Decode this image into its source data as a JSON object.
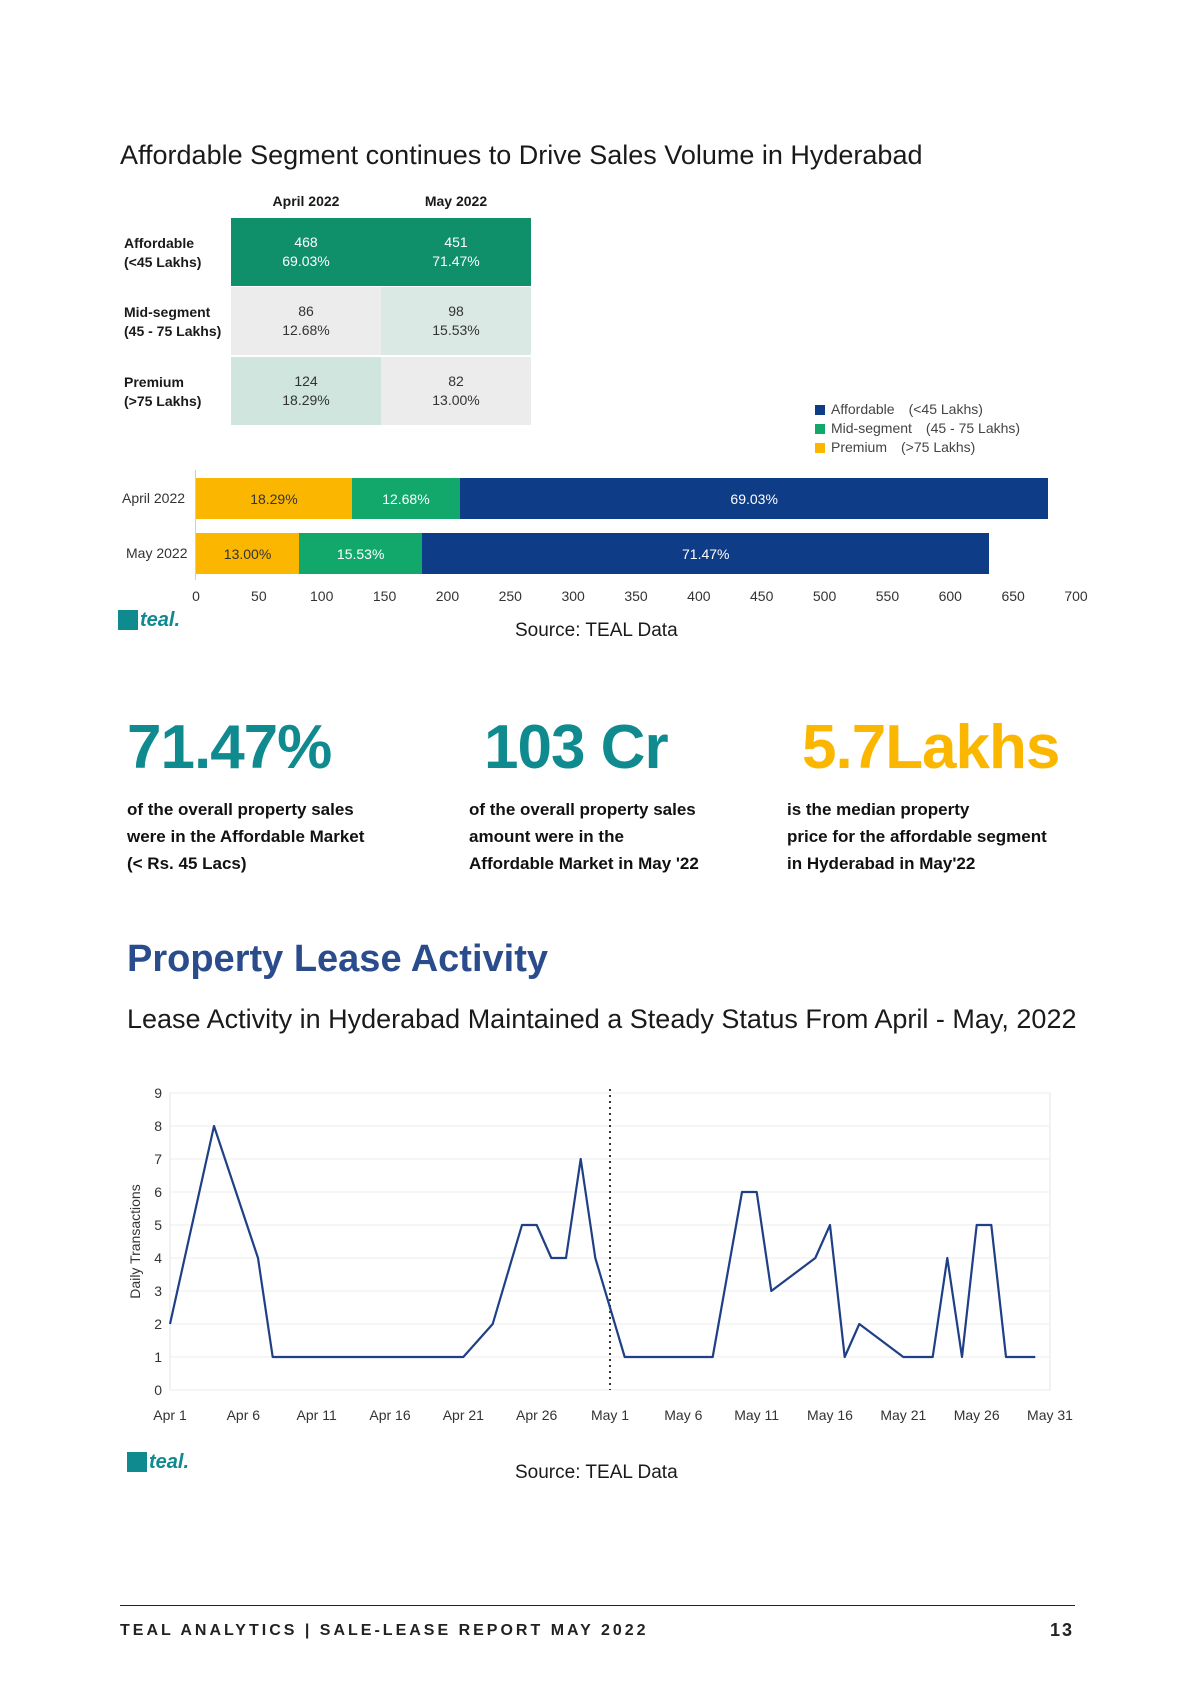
{
  "section_heading": "Affordable Segment continues to Drive Sales Volume in Hyderabad",
  "segment_table": {
    "columns": [
      "April 2022",
      "May 2022"
    ],
    "rows": [
      {
        "label_line1": "Affordable",
        "label_line2": "(<45 Lakhs)",
        "april_count": "468",
        "april_pct": "69.03%",
        "may_count": "451",
        "may_pct": "71.47%"
      },
      {
        "label_line1": "Mid-segment",
        "label_line2": "(45 - 75 Lakhs)",
        "april_count": "86",
        "april_pct": "12.68%",
        "may_count": "98",
        "may_pct": "15.53%"
      },
      {
        "label_line1": "Premium",
        "label_line2": "(>75 Lakhs)",
        "april_count": "124",
        "april_pct": "18.29%",
        "may_count": "82",
        "may_pct": "13.00%"
      }
    ],
    "colors": {
      "affordable_april": "#0f8f6a",
      "affordable_may": "#0f8f6a",
      "mid_april": "#ececec",
      "mid_may": "#dbe9e5",
      "premium_april": "#cfe5de",
      "premium_may": "#ececec"
    }
  },
  "chart_data": [
    {
      "type": "bar",
      "orientation": "horizontal",
      "stacked": true,
      "categories": [
        "April 2022",
        "May 2022"
      ],
      "series": [
        {
          "name": "Premium",
          "range": "(>75 Lakhs)",
          "color": "#fbb700",
          "values": [
            124,
            82
          ],
          "labels": [
            "18.29%",
            "13.00%"
          ]
        },
        {
          "name": "Mid-segment",
          "range": "(45 - 75 Lakhs)",
          "color": "#12a86c",
          "values": [
            86,
            98
          ],
          "labels": [
            "12.68%",
            "15.53%"
          ]
        },
        {
          "name": "Affordable",
          "range": "(<45 Lakhs)",
          "color": "#0f3c86",
          "values": [
            468,
            451
          ],
          "labels": [
            "69.03%",
            "71.47%"
          ]
        }
      ],
      "xlim": [
        0,
        700
      ],
      "xticks": [
        "0",
        "50",
        "100",
        "150",
        "200",
        "250",
        "300",
        "350",
        "400",
        "450",
        "500",
        "550",
        "600",
        "650",
        "700"
      ],
      "legend_position": "top-right",
      "grid": false
    },
    {
      "type": "line",
      "ylabel": "Daily Transactions",
      "ylim": [
        0,
        9
      ],
      "yticks": [
        "0",
        "1",
        "2",
        "3",
        "4",
        "5",
        "6",
        "7",
        "8",
        "9"
      ],
      "xlim": [
        "2022-04-01",
        "2022-05-31"
      ],
      "xticks": [
        "Apr 1",
        "Apr 6",
        "Apr 11",
        "Apr 16",
        "Apr 21",
        "Apr 26",
        "May 1",
        "May 6",
        "May 11",
        "May 16",
        "May 21",
        "May 26",
        "May 31"
      ],
      "vline_at": "2022-05-01",
      "color": "#1f3f86",
      "grid": true,
      "points": [
        {
          "x": "2022-04-01",
          "y": 2
        },
        {
          "x": "2022-04-04",
          "y": 8
        },
        {
          "x": "2022-04-07",
          "y": 4
        },
        {
          "x": "2022-04-08",
          "y": 1
        },
        {
          "x": "2022-04-21",
          "y": 1
        },
        {
          "x": "2022-04-23",
          "y": 2
        },
        {
          "x": "2022-04-25",
          "y": 5
        },
        {
          "x": "2022-04-26",
          "y": 5
        },
        {
          "x": "2022-04-27",
          "y": 4
        },
        {
          "x": "2022-04-28",
          "y": 4
        },
        {
          "x": "2022-04-29",
          "y": 7
        },
        {
          "x": "2022-04-30",
          "y": 4
        },
        {
          "x": "2022-05-02",
          "y": 1
        },
        {
          "x": "2022-05-08",
          "y": 1
        },
        {
          "x": "2022-05-10",
          "y": 6
        },
        {
          "x": "2022-05-11",
          "y": 6
        },
        {
          "x": "2022-05-12",
          "y": 3
        },
        {
          "x": "2022-05-15",
          "y": 4
        },
        {
          "x": "2022-05-16",
          "y": 5
        },
        {
          "x": "2022-05-17",
          "y": 1
        },
        {
          "x": "2022-05-18",
          "y": 2
        },
        {
          "x": "2022-05-21",
          "y": 1
        },
        {
          "x": "2022-05-23",
          "y": 1
        },
        {
          "x": "2022-05-24",
          "y": 4
        },
        {
          "x": "2022-05-25",
          "y": 1
        },
        {
          "x": "2022-05-26",
          "y": 5
        },
        {
          "x": "2022-05-27",
          "y": 5
        },
        {
          "x": "2022-05-28",
          "y": 1
        },
        {
          "x": "2022-05-30",
          "y": 1
        }
      ]
    }
  ],
  "logo_text": "teal.",
  "source_text": "Source: TEAL Data",
  "stats": [
    {
      "value": "71.47%",
      "color": "#0f8a8f",
      "lines": [
        "of the overall property sales",
        "were in the Affordable Market",
        "(< Rs. 45 Lacs)"
      ]
    },
    {
      "value": "103 Cr",
      "color": "#0f8a8f",
      "lines": [
        "of the overall property sales",
        "amount were in the",
        "Affordable Market in May '22"
      ]
    },
    {
      "value": "5.7Lakhs",
      "color": "#fbb700",
      "lines": [
        "is the median property",
        "price for the affordable segment",
        "in Hyderabad in May'22"
      ]
    }
  ],
  "lease": {
    "title": "Property Lease Activity",
    "subtitle": "Lease Activity in Hyderabad Maintained a Steady Status From April - May, 2022"
  },
  "footer": {
    "text": "TEAL ANALYTICS | SALE-LEASE REPORT MAY 2022",
    "page": "13"
  }
}
